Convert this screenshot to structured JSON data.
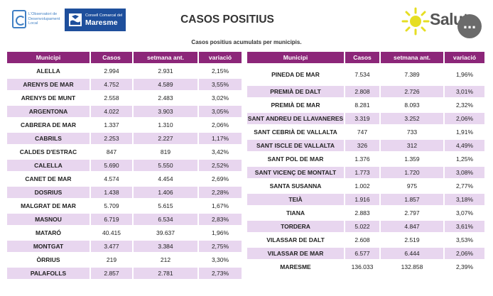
{
  "header": {
    "observatori_text": "L'Observatori de Desenvolupament Local",
    "consell_small": "Consell Comarcal del",
    "consell_big": "Maresme",
    "title": "CASOS POSITIUS",
    "salut_label": "Salut",
    "more_label": "..."
  },
  "subtitle": "Casos positius acumulats per municipis.",
  "columns": [
    "Municipi",
    "Casos",
    "setmana ant.",
    "variació"
  ],
  "colors": {
    "header": "#8c2679",
    "row_alt": "#e8d6ef",
    "accent_sun": "#e6de23",
    "brand_blue": "#1e4f9c"
  },
  "left_rows": [
    {
      "municipi": "ALELLA",
      "casos": "2.994",
      "setmana": "2.931",
      "variacio": "2,15%"
    },
    {
      "municipi": "ARENYS DE MAR",
      "casos": "4.752",
      "setmana": "4.589",
      "variacio": "3,55%"
    },
    {
      "municipi": "ARENYS DE MUNT",
      "casos": "2.558",
      "setmana": "2.483",
      "variacio": "3,02%"
    },
    {
      "municipi": "ARGENTONA",
      "casos": "4.022",
      "setmana": "3.903",
      "variacio": "3,05%"
    },
    {
      "municipi": "CABRERA DE MAR",
      "casos": "1.337",
      "setmana": "1.310",
      "variacio": "2,06%"
    },
    {
      "municipi": "CABRILS",
      "casos": "2.253",
      "setmana": "2.227",
      "variacio": "1,17%"
    },
    {
      "municipi": "CALDES D'ESTRAC",
      "casos": "847",
      "setmana": "819",
      "variacio": "3,42%"
    },
    {
      "municipi": "CALELLA",
      "casos": "5.690",
      "setmana": "5.550",
      "variacio": "2,52%"
    },
    {
      "municipi": "CANET DE MAR",
      "casos": "4.574",
      "setmana": "4.454",
      "variacio": "2,69%"
    },
    {
      "municipi": "DOSRIUS",
      "casos": "1.438",
      "setmana": "1.406",
      "variacio": "2,28%"
    },
    {
      "municipi": "MALGRAT DE MAR",
      "casos": "5.709",
      "setmana": "5.615",
      "variacio": "1,67%"
    },
    {
      "municipi": "MASNOU",
      "casos": "6.719",
      "setmana": "6.534",
      "variacio": "2,83%"
    },
    {
      "municipi": "MATARÓ",
      "casos": "40.415",
      "setmana": "39.637",
      "variacio": "1,96%"
    },
    {
      "municipi": "MONTGAT",
      "casos": "3.477",
      "setmana": "3.384",
      "variacio": "2,75%"
    },
    {
      "municipi": "ÒRRIUS",
      "casos": "219",
      "setmana": "212",
      "variacio": "3,30%"
    },
    {
      "municipi": "PALAFOLLS",
      "casos": "2.857",
      "setmana": "2.781",
      "variacio": "2,73%"
    }
  ],
  "right_rows": [
    {
      "municipi": "PINEDA DE MAR",
      "casos": "7.534",
      "setmana": "7.389",
      "variacio": "1,96%"
    },
    {
      "municipi": "PREMIÀ DE DALT",
      "casos": "2.808",
      "setmana": "2.726",
      "variacio": "3,01%"
    },
    {
      "municipi": "PREMIÀ DE MAR",
      "casos": "8.281",
      "setmana": "8.093",
      "variacio": "2,32%"
    },
    {
      "municipi": "SANT ANDREU DE LLAVANERES",
      "casos": "3.319",
      "setmana": "3.252",
      "variacio": "2,06%"
    },
    {
      "municipi": "SANT CEBRIÀ DE VALLALTA",
      "casos": "747",
      "setmana": "733",
      "variacio": "1,91%"
    },
    {
      "municipi": "SANT ISCLE DE VALLALTA",
      "casos": "326",
      "setmana": "312",
      "variacio": "4,49%"
    },
    {
      "municipi": "SANT POL DE MAR",
      "casos": "1.376",
      "setmana": "1.359",
      "variacio": "1,25%"
    },
    {
      "municipi": "SANT VICENÇ DE MONTALT",
      "casos": "1.773",
      "setmana": "1.720",
      "variacio": "3,08%"
    },
    {
      "municipi": "SANTA SUSANNA",
      "casos": "1.002",
      "setmana": "975",
      "variacio": "2,77%"
    },
    {
      "municipi": "TEIÀ",
      "casos": "1.916",
      "setmana": "1.857",
      "variacio": "3,18%"
    },
    {
      "municipi": "TIANA",
      "casos": "2.883",
      "setmana": "2.797",
      "variacio": "3,07%"
    },
    {
      "municipi": "TORDERA",
      "casos": "5.022",
      "setmana": "4.847",
      "variacio": "3,61%"
    },
    {
      "municipi": "VILASSAR DE DALT",
      "casos": "2.608",
      "setmana": "2.519",
      "variacio": "3,53%"
    },
    {
      "municipi": "VILASSAR DE MAR",
      "casos": "6.577",
      "setmana": "6.444",
      "variacio": "2,06%"
    },
    {
      "municipi": "MARESME",
      "casos": "136.033",
      "setmana": "132.858",
      "variacio": "2,39%"
    }
  ]
}
